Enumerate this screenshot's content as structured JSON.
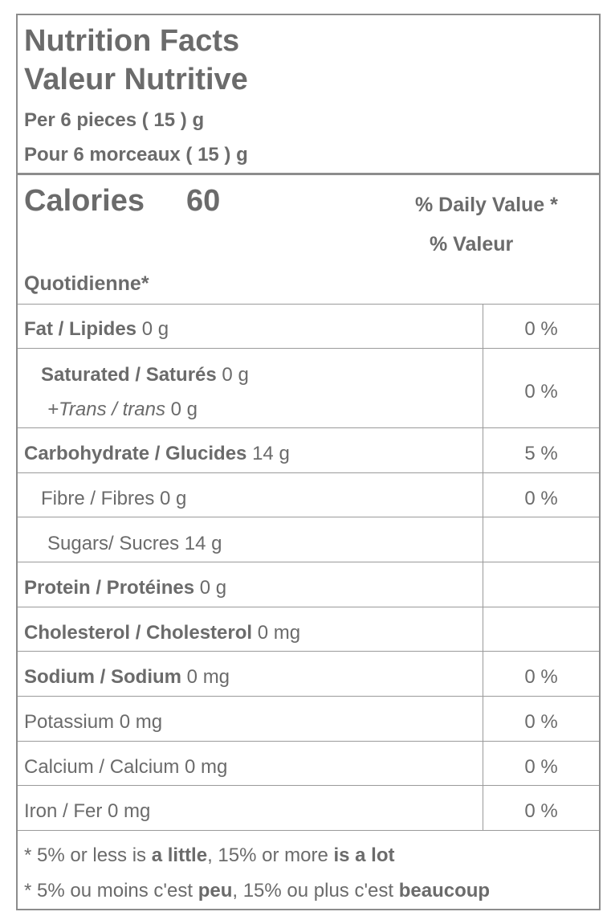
{
  "header": {
    "title_en": "Nutrition Facts",
    "title_fr": "Valeur Nutritive",
    "serving_en": "Per 6 pieces ( 15 ) g",
    "serving_fr": "Pour 6 morceaux ( 15 ) g"
  },
  "calories": {
    "label": "Calories",
    "value": "60",
    "daily_value_en": "% Daily Value *",
    "daily_value_fr_1": "% Valeur",
    "daily_value_fr_2": "Quotidienne*"
  },
  "rows": {
    "fat": {
      "name": "Fat / Lipides",
      "amount": "0 g",
      "dv": "0 %"
    },
    "saturated": {
      "name": "Saturated / Saturés",
      "amount": "0 g"
    },
    "trans": {
      "name": "+Trans / trans",
      "amount": "0 g"
    },
    "sat_trans_dv": "0 %",
    "carb": {
      "name": "Carbohydrate / Glucides",
      "amount": "14 g",
      "dv": "5 %"
    },
    "fibre": {
      "text": "Fibre / Fibres 0 g",
      "dv": "0 %"
    },
    "sugars": {
      "text": "Sugars/ Sucres 14 g"
    },
    "protein": {
      "name": "Protein / Protéines",
      "amount": "0 g"
    },
    "cholesterol": {
      "name": "Cholesterol / Cholesterol",
      "amount": "0 mg"
    },
    "sodium": {
      "name": "Sodium / Sodium",
      "amount": "0 mg",
      "dv": "0 %"
    },
    "potassium": {
      "text": "Potassium 0 mg",
      "dv": "0 %"
    },
    "calcium": {
      "text": "Calcium / Calcium 0 mg",
      "dv": "0 %"
    },
    "iron": {
      "text": "Iron / Fer 0 mg",
      "dv": "0 %"
    }
  },
  "footer": {
    "en_prefix": "* 5% or less is ",
    "en_little": "a little",
    "en_mid": ", 15% or more ",
    "en_lot": "is a lot",
    "fr_prefix": "* 5% ou moins c'est ",
    "fr_peu": "peu",
    "fr_mid": ", 15% ou plus c'est ",
    "fr_beaucoup": "beaucoup"
  }
}
